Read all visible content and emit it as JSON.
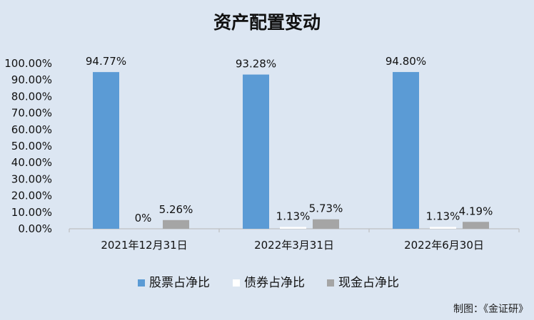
{
  "chart_data": {
    "type": "bar",
    "title": "资产配置变动",
    "categories": [
      "2021年12月31日",
      "2022年3月31日",
      "2022年6月30日"
    ],
    "series": [
      {
        "name": "股票占净比",
        "color": "#5b9bd5",
        "values": [
          94.77,
          93.28,
          94.8
        ],
        "labels": [
          "94.77%",
          "93.28%",
          "94.80%"
        ]
      },
      {
        "name": "债券占净比",
        "color": "#ffffff",
        "values": [
          0,
          1.13,
          1.13
        ],
        "labels": [
          "0%",
          "1.13%",
          "1.13%"
        ]
      },
      {
        "name": "现金占净比",
        "color": "#a5a5a5",
        "values": [
          5.26,
          5.73,
          4.19
        ],
        "labels": [
          "5.26%",
          "5.73%",
          "4.19%"
        ]
      }
    ],
    "ylim": [
      0,
      100
    ],
    "yticks": [
      "0.00%",
      "10.00%",
      "20.00%",
      "30.00%",
      "40.00%",
      "50.00%",
      "60.00%",
      "70.00%",
      "80.00%",
      "90.00%",
      "100.00%"
    ],
    "grid": false,
    "legend_position": "bottom",
    "source_note": "制图：《金证研》"
  }
}
